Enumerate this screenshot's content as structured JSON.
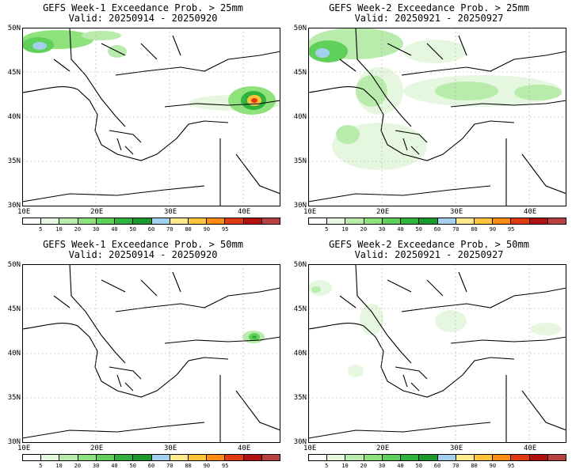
{
  "panels": [
    {
      "line1": "GEFS Week-1 Exceedance Prob. > 25mm",
      "line2": "Valid: 20250914 - 20250920"
    },
    {
      "line1": "GEFS Week-2 Exceedance Prob. > 25mm",
      "line2": "Valid: 20250921 - 20250927"
    },
    {
      "line1": "GEFS Week-1 Exceedance Prob. > 50mm",
      "line2": "Valid: 20250914 - 20250920"
    },
    {
      "line1": "GEFS Week-2 Exceedance Prob. > 50mm",
      "line2": "Valid: 20250921 - 20250927"
    }
  ],
  "axes": {
    "lat_labels": [
      "50N",
      "45N",
      "40N",
      "35N",
      "30N"
    ],
    "lon_labels": [
      "10E",
      "20E",
      "30E",
      "40E"
    ]
  },
  "colorbar": {
    "labels": [
      "5",
      "10",
      "20",
      "30",
      "40",
      "50",
      "60",
      "70",
      "80",
      "90",
      "95"
    ],
    "colors": [
      "#ffffff",
      "#e6f7e0",
      "#b8ebac",
      "#8ee27c",
      "#5fd05a",
      "#30b33c",
      "#1a9a2c",
      "#a3d0ee",
      "#ffe98a",
      "#ffc43a",
      "#ff8a14",
      "#e03a10",
      "#b01010",
      "#b84040"
    ]
  },
  "map_extent": {
    "lon": [
      10,
      45
    ],
    "lat": [
      30,
      50
    ]
  }
}
